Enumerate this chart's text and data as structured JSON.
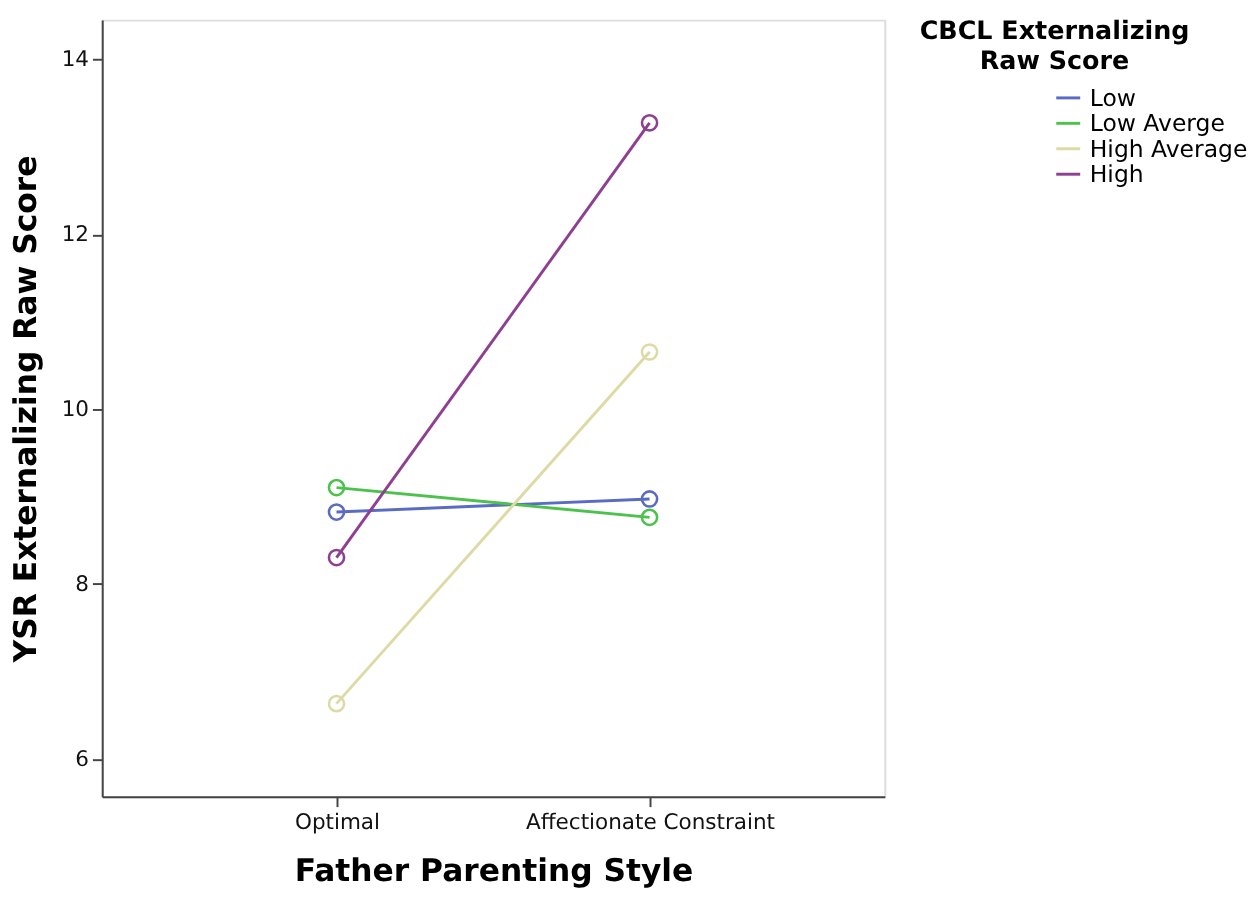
{
  "chart_data": {
    "type": "line",
    "xlabel": "Father Parenting Style",
    "ylabel": "YSR Externalizing Raw Score",
    "legend_title": "CBCL Externalizing Raw Score",
    "categories": [
      "Optimal",
      "Affectionate Constraint"
    ],
    "series": [
      {
        "name": "Low",
        "color": "#5a6bc4",
        "values": [
          8.82,
          8.97
        ]
      },
      {
        "name": "Low Averge",
        "color": "#4cc24c",
        "values": [
          9.1,
          8.76
        ]
      },
      {
        "name": "High Average",
        "color": "#dedaa6",
        "values": [
          6.63,
          10.65
        ]
      },
      {
        "name": "High",
        "color": "#8e3f92",
        "values": [
          8.3,
          13.27
        ]
      }
    ],
    "ylim": [
      5.57,
      14.45
    ],
    "yticks": [
      6,
      8,
      10,
      12,
      14
    ],
    "grid": false,
    "legend": "right",
    "marker": "circle",
    "line_style": "solid"
  }
}
